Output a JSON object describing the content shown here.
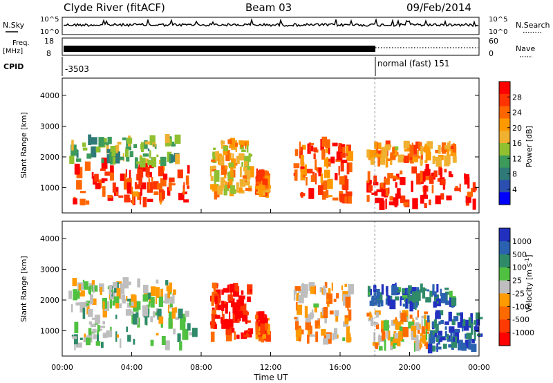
{
  "header": {
    "station": "Clyde River (fitACF)",
    "beam": "Beam 03",
    "date": "09/Feb/2014"
  },
  "status_panels": {
    "nsky_label": "N.Sky",
    "nsky_ticks": [
      "10^5",
      "10^0"
    ],
    "nsearch_label": "N.Search",
    "nsearch_ticks": [
      "10^5",
      "10^0"
    ],
    "freq_label_1": "Freq.",
    "freq_label_2": "[MHz]",
    "freq_ticks": [
      "18",
      "8"
    ],
    "nave_label": "Nave",
    "nave_ticks": [
      "60",
      "0"
    ],
    "cpid_label": "CPID",
    "cpid_segments": [
      {
        "label": "-3503",
        "start_hour": 0,
        "end_hour": 18
      },
      {
        "label": "normal (fast) 151",
        "start_hour": 18,
        "end_hour": 24
      }
    ]
  },
  "axes": {
    "xlabel": "Time UT",
    "ylabel": "Slant Range [km]",
    "x_ticks": [
      "00:00",
      "04:00",
      "08:00",
      "12:00",
      "16:00",
      "20:00",
      "00:00"
    ],
    "x_tick_hours": [
      0,
      4,
      8,
      12,
      16,
      20,
      24
    ],
    "y_ticks": [
      "1000",
      "2000",
      "3000",
      "4000"
    ],
    "y_tick_values": [
      1000,
      2000,
      3000,
      4000
    ]
  },
  "power_colorbar": {
    "label": "Power [dB]",
    "ticks": [
      "28",
      "24",
      "20",
      "16",
      "12",
      "8",
      "4"
    ],
    "colors": [
      "#ff0000",
      "#ff3300",
      "#ff6600",
      "#ff9900",
      "#f0b030",
      "#90c030",
      "#3c9a5a",
      "#2f7a78",
      "#2a4fb0",
      "#0000ff"
    ]
  },
  "velocity_colorbar": {
    "label_main": "Velocity ",
    "label_unit": "[m s",
    "label_exp": "-1",
    "label_close": "]",
    "ticks": [
      "1000",
      "500",
      "100",
      "25",
      "-25",
      "-100",
      "-500",
      "-1000"
    ],
    "colors": [
      "#2230c0",
      "#2a62b0",
      "#2f8a6a",
      "#50c040",
      "#bebebe",
      "#ff9a00",
      "#ff6a00",
      "#ff3a00",
      "#ff0000"
    ]
  },
  "chart_data": [
    {
      "type": "heatmap",
      "title": "Power",
      "xlabel": "Time UT",
      "ylabel": "Slant Range [km]",
      "xlim": [
        0,
        24
      ],
      "ylim": [
        180,
        4560
      ],
      "color_scale": {
        "label": "Power [dB]",
        "range": [
          0,
          30
        ]
      },
      "mode_change_hour": 18,
      "echo_regions": [
        {
          "x": [
            0.5,
            7.5
          ],
          "y": [
            500,
            1800
          ],
          "value": 26
        },
        {
          "x": [
            0.3,
            6.5
          ],
          "y": [
            1800,
            2600
          ],
          "value": 12
        },
        {
          "x": [
            8.5,
            10.8
          ],
          "y": [
            800,
            2500
          ],
          "value": 18
        },
        {
          "x": [
            11.1,
            11.7
          ],
          "y": [
            800,
            1500
          ],
          "value": 22
        },
        {
          "x": [
            13.3,
            16.5
          ],
          "y": [
            600,
            2500
          ],
          "value": 24
        },
        {
          "x": [
            17.5,
            24.0
          ],
          "y": [
            400,
            1600
          ],
          "value": 27
        },
        {
          "x": [
            17.5,
            22.5
          ],
          "y": [
            1800,
            2400
          ],
          "value": 20
        }
      ]
    },
    {
      "type": "heatmap",
      "title": "Velocity",
      "xlabel": "Time UT",
      "ylabel": "Slant Range [km]",
      "xlim": [
        0,
        24
      ],
      "ylim": [
        180,
        4560
      ],
      "color_scale": {
        "label": "Velocity [m s-1]",
        "range": [
          -1000,
          1000
        ]
      },
      "mode_change_hour": 18,
      "echo_regions": [
        {
          "x": [
            0.5,
            7.5
          ],
          "y": [
            500,
            1800
          ],
          "value": 150
        },
        {
          "x": [
            0.3,
            6.5
          ],
          "y": [
            1800,
            2600
          ],
          "value": 25
        },
        {
          "x": [
            8.5,
            10.8
          ],
          "y": [
            800,
            2500
          ],
          "value": -800
        },
        {
          "x": [
            11.1,
            11.7
          ],
          "y": [
            800,
            1500
          ],
          "value": -600
        },
        {
          "x": [
            13.3,
            16.5
          ],
          "y": [
            600,
            2500
          ],
          "value": -200
        },
        {
          "x": [
            17.5,
            21.0
          ],
          "y": [
            400,
            1600
          ],
          "value": -150
        },
        {
          "x": [
            21.0,
            24.0
          ],
          "y": [
            400,
            1600
          ],
          "value": 700
        },
        {
          "x": [
            17.5,
            22.5
          ],
          "y": [
            1800,
            2400
          ],
          "value": 600
        }
      ]
    }
  ]
}
